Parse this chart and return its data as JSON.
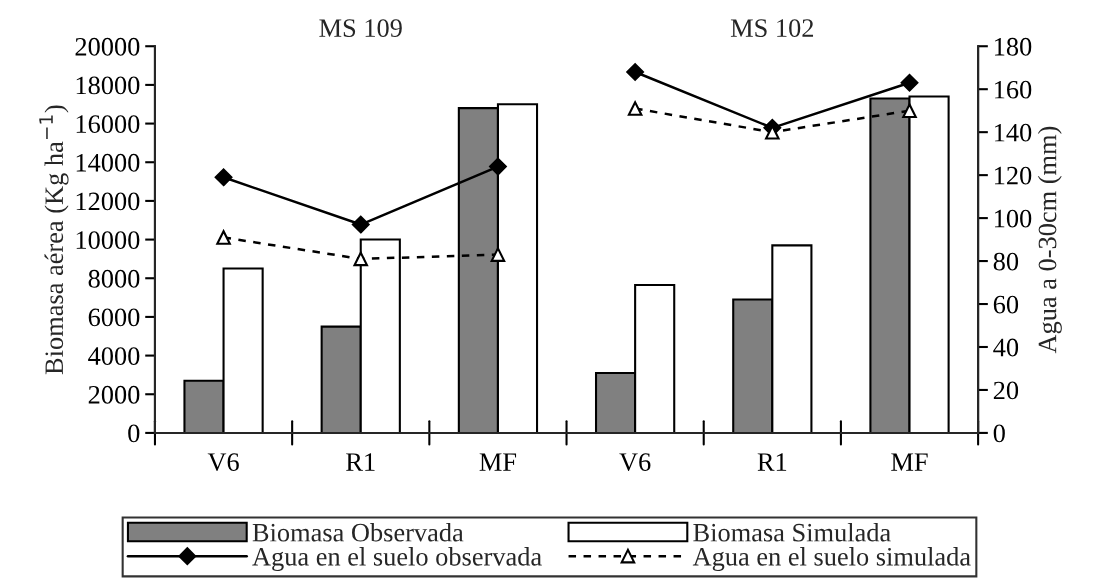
{
  "chart_data": {
    "type": "bar",
    "categories": [
      "V6",
      "R1",
      "MF",
      "V6",
      "R1",
      "MF"
    ],
    "ylabel": "Biomasa aérea (Kg ha$^{−1}$)",
    "y2label": "Agua a 0-30cm (mm)",
    "annotations": [
      "MS 109",
      "MS 102"
    ],
    "ylim": [
      0,
      20000
    ],
    "yticks": [
      0,
      2000,
      4000,
      6000,
      8000,
      10000,
      12000,
      14000,
      16000,
      18000,
      20000
    ],
    "y2lim": [
      0,
      180
    ],
    "y2ticks": [
      0,
      20,
      40,
      60,
      80,
      100,
      120,
      140,
      160,
      180
    ],
    "grid": false,
    "legend": "bottom",
    "series": [
      {
        "name": "Biomasa Observada",
        "color": "#808080",
        "values": [
          2700,
          5500,
          16800,
          3100,
          6900,
          17300
        ]
      },
      {
        "name": "Biomasa Simulada",
        "color": "#ffffff",
        "values": [
          8500,
          10000,
          17000,
          7650,
          9700,
          17400
        ]
      },
      {
        "name": "Agua en el suelo observada",
        "type": "line",
        "axis": "y2",
        "color": "#000000",
        "marker": "diamond",
        "line_style": "solid",
        "values": [
          119,
          97,
          124,
          null,
          null,
          null
        ]
      },
      {
        "name": "Agua en el suelo simulada",
        "type": "line",
        "axis": "y2",
        "color": "#000000",
        "marker": "triangle",
        "line_style": "dashed",
        "values": [
          91,
          81,
          83,
          null,
          null,
          null
        ]
      },
      {
        "type": "line",
        "axis": "y2",
        "color": "#000000",
        "marker": "diamond",
        "line_style": "solid",
        "values": [
          null,
          null,
          null,
          168,
          142,
          163
        ]
      },
      {
        "type": "line",
        "axis": "y2",
        "color": "#000000",
        "marker": "triangle",
        "line_style": "dashed",
        "values": [
          null,
          null,
          null,
          151,
          140,
          150
        ]
      }
    ]
  }
}
